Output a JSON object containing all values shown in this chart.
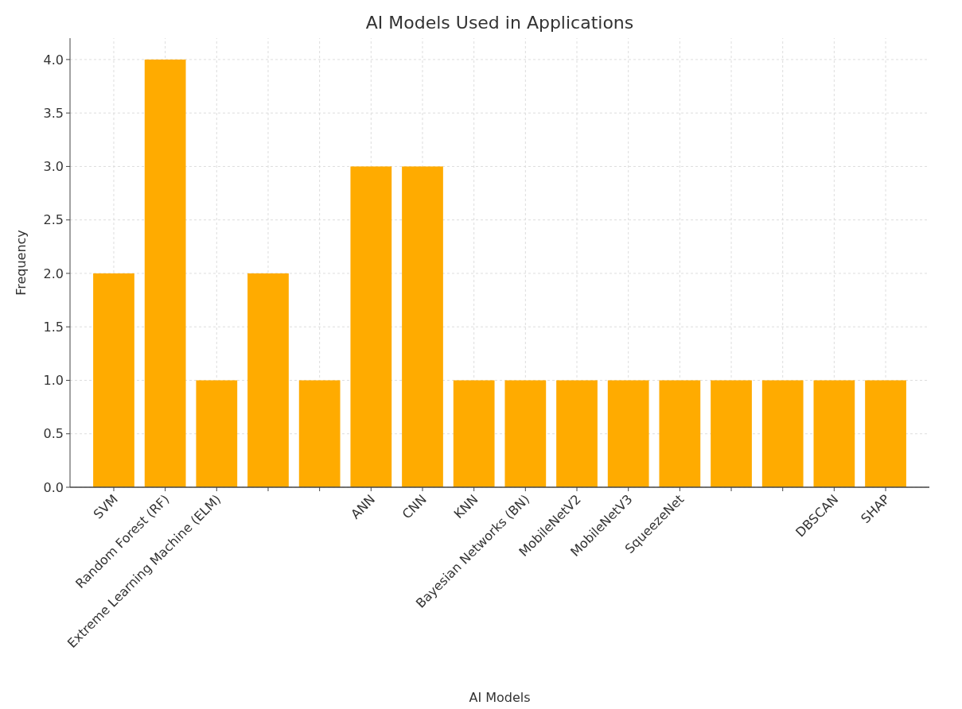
{
  "chart_data": {
    "type": "bar",
    "title": "AI Models Used in Applications",
    "xlabel": "AI Models",
    "ylabel": "Frequency",
    "categories": [
      "SVM",
      "Random Forest (RF)",
      "Extreme Learning Machine (ELM)",
      null,
      null,
      "ANN",
      "CNN",
      "KNN",
      "Bayesian Networks (BN)",
      "MobileNetV2",
      "MobileNetV3",
      "SqueezeNet",
      null,
      null,
      "DBSCAN",
      "SHAP"
    ],
    "values": [
      2,
      4,
      1,
      2,
      1,
      3,
      3,
      1,
      1,
      1,
      1,
      1,
      1,
      1,
      1,
      1
    ],
    "color": "#ffab00",
    "ylim": [
      0,
      4.2
    ],
    "yticks": [
      {
        "value": 0,
        "label": "0.0"
      },
      {
        "value": 0.5,
        "label": "0.5"
      },
      {
        "value": 1,
        "label": "1.0"
      },
      {
        "value": 1.5,
        "label": "1.5"
      },
      {
        "value": 2,
        "label": "2.0"
      },
      {
        "value": 2.5,
        "label": "2.5"
      },
      {
        "value": 3,
        "label": "3.0"
      },
      {
        "value": 3.5,
        "label": "3.5"
      },
      {
        "value": 4,
        "label": "4.0"
      }
    ],
    "grid": true
  }
}
